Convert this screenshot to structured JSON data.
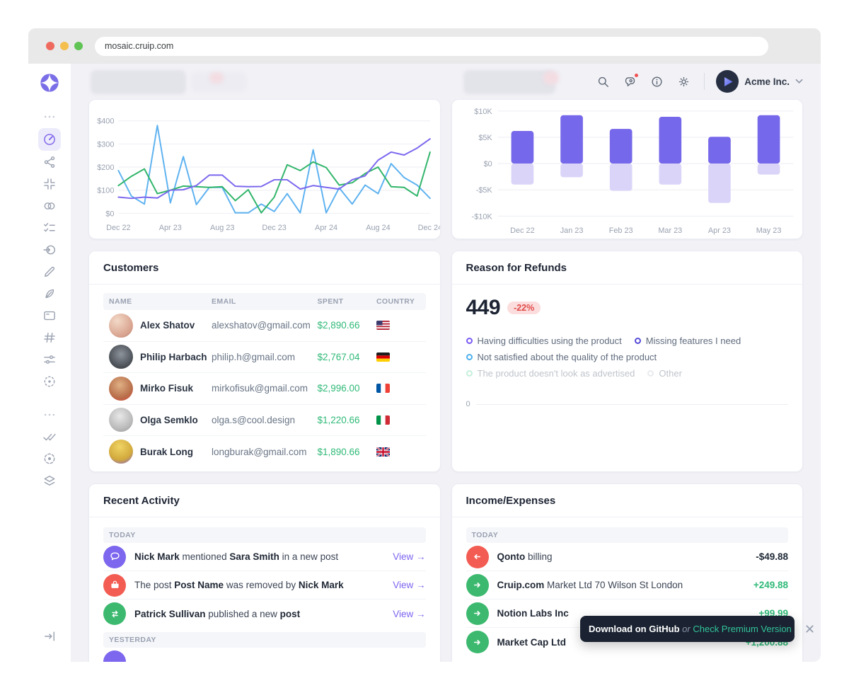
{
  "browser": {
    "url": "mosaic.cruip.com"
  },
  "topbar": {
    "company": "Acme Inc."
  },
  "sidebar": {
    "icons": [
      "menu-ellipsis",
      "dashboard",
      "share-nodes",
      "corners-in",
      "loop-circles",
      "checklist",
      "sign-in",
      "pencil",
      "feather",
      "card",
      "hash",
      "sliders",
      "scan-dot",
      "menu-ellipsis-2",
      "double-check",
      "target-dashed",
      "layers",
      "expand-sidebar"
    ]
  },
  "accent_colors": {
    "violet": "#7d64f0",
    "green": "#30ba78",
    "red": "#f25c52",
    "sky": "#5eb2f0"
  },
  "chart_data": [
    {
      "type": "line",
      "x_points": 25,
      "x_label_indices": [
        0,
        4,
        8,
        12,
        16,
        20,
        24
      ],
      "x_labels": [
        "Dec 22",
        "Apr 23",
        "Aug 23",
        "Dec 23",
        "Apr 24",
        "Aug 24",
        "Dec 24"
      ],
      "ylim": [
        0,
        400
      ],
      "yticks": [
        400,
        300,
        200,
        100,
        0
      ],
      "ytick_labels": [
        "$400",
        "$300",
        "$200",
        "$100",
        "$0"
      ],
      "grid": true,
      "series": [
        {
          "name": "sky-series",
          "color": "#5eb2f0",
          "values": [
            185,
            75,
            40,
            380,
            45,
            245,
            38,
            112,
            112,
            2,
            2,
            40,
            8,
            85,
            2,
            275,
            2,
            110,
            40,
            122,
            85,
            215,
            155,
            122,
            65
          ]
        },
        {
          "name": "green-series",
          "color": "#31b56a",
          "values": [
            120,
            160,
            192,
            85,
            100,
            118,
            115,
            112,
            115,
            55,
            102,
            2,
            70,
            210,
            185,
            222,
            198,
            122,
            132,
            172,
            200,
            115,
            112,
            75,
            265
          ]
        },
        {
          "name": "violet-series",
          "color": "#7b68ee",
          "values": [
            70,
            65,
            70,
            66,
            100,
            102,
            120,
            165,
            165,
            117,
            115,
            116,
            145,
            145,
            105,
            120,
            112,
            105,
            145,
            162,
            230,
            265,
            252,
            282,
            322
          ]
        }
      ]
    },
    {
      "type": "bar",
      "categories": [
        "Dec 22",
        "Jan 23",
        "Feb 23",
        "Mar 23",
        "Apr 23",
        "May 23"
      ],
      "ylim": [
        -10000,
        10000
      ],
      "yticks": [
        10000,
        5000,
        0,
        -5000,
        -10000
      ],
      "ytick_labels": [
        "$10K",
        "$5K",
        "$0",
        "-$5K",
        "-$10K"
      ],
      "grid": true,
      "series": [
        {
          "name": "positive",
          "color": "#7668ea",
          "values": [
            6200,
            9200,
            6600,
            8900,
            5100,
            9200
          ]
        },
        {
          "name": "negative",
          "color": "#dad5f8",
          "values": [
            -4000,
            -2600,
            -5200,
            -4000,
            -7500,
            -2100
          ]
        }
      ]
    }
  ],
  "customers": {
    "title": "Customers",
    "columns": [
      "Name",
      "Email",
      "Spent",
      "Country"
    ],
    "rows": [
      {
        "name": "Alex Shatov",
        "email": "alexshatov@gmail.com",
        "spent": "$2,890.66",
        "country": "us"
      },
      {
        "name": "Philip Harbach",
        "email": "philip.h@gmail.com",
        "spent": "$2,767.04",
        "country": "de"
      },
      {
        "name": "Mirko Fisuk",
        "email": "mirkofisuk@gmail.com",
        "spent": "$2,996.00",
        "country": "fr"
      },
      {
        "name": "Olga Semklo",
        "email": "olga.s@cool.design",
        "spent": "$1,220.66",
        "country": "it"
      },
      {
        "name": "Burak Long",
        "email": "longburak@gmail.com",
        "spent": "$1,890.66",
        "country": "gb"
      }
    ]
  },
  "refunds": {
    "title": "Reason for Refunds",
    "value": "449",
    "delta": "-22%",
    "baseline_label": "0",
    "legend": [
      {
        "label": "Having difficulties using the product",
        "color": "#7a5af5",
        "faded": false
      },
      {
        "label": "Missing features I need",
        "color": "#554bd8",
        "faded": false
      },
      {
        "label": "Not satisfied about the quality of the product",
        "color": "#4cb0ee",
        "faded": false
      },
      {
        "label": "The product doesn't look as advertised",
        "color": "#6fd8a8",
        "faded": true
      },
      {
        "label": "Other",
        "color": "#c6ccd6",
        "faded": true
      }
    ]
  },
  "activity": {
    "title": "Recent Activity",
    "group_today": "Today",
    "group_yesterday": "Yesterday",
    "view_label": "View →",
    "items": [
      {
        "icon": "comment",
        "s0": "",
        "b0": "Nick Mark",
        "s1": " mentioned ",
        "b1": "Sara Smith",
        "s2": " in a new post"
      },
      {
        "icon": "removed",
        "s0": "The post ",
        "b0": "Post Name",
        "s1": " was removed by ",
        "b1": "Nick Mark",
        "s2": ""
      },
      {
        "icon": "swap",
        "s0": "",
        "b0": "Patrick Sullivan",
        "s1": " published a new ",
        "b1": "post",
        "s2": ""
      }
    ]
  },
  "income": {
    "title": "Income/Expenses",
    "group_today": "Today",
    "rows": [
      {
        "icon": "arrow-left-red",
        "bold": "Qonto",
        "rest": " billing",
        "amount": "-$49.88"
      },
      {
        "icon": "arrow-right-green",
        "bold": "Cruip.com",
        "rest": " Market Ltd 70 Wilson St London",
        "amount": "+249.88"
      },
      {
        "icon": "arrow-right-green",
        "bold": "Notion Labs Inc",
        "rest": "",
        "amount": "+99.99"
      },
      {
        "icon": "arrow-right-green",
        "bold": "Market Cap Ltd",
        "rest": "",
        "amount": "+1,200.88"
      }
    ]
  },
  "toast": {
    "text": "Download on GitHub",
    "separator": " or ",
    "link": "Check Premium Version"
  }
}
